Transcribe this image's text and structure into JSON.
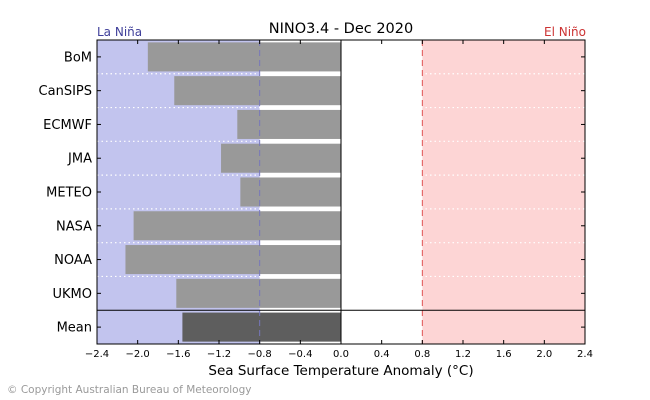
{
  "chart_data": {
    "type": "bar",
    "orientation": "horizontal",
    "title": "NINO3.4 - Dec 2020",
    "xlabel": "Sea Surface Temperature Anomaly (°C)",
    "ylabel": "",
    "xlim": [
      -2.4,
      2.4
    ],
    "xticks": [
      "−2.4",
      "−2.0",
      "−1.6",
      "−1.2",
      "−0.8",
      "−0.4",
      "0.0",
      "0.4",
      "0.8",
      "1.2",
      "1.6",
      "2.0",
      "2.4"
    ],
    "xtick_values": [
      -2.4,
      -2.0,
      -1.6,
      -1.2,
      -0.8,
      -0.4,
      0.0,
      0.4,
      0.8,
      1.2,
      1.6,
      2.0,
      2.4
    ],
    "categories": [
      "BoM",
      "CanSIPS",
      "ECMWF",
      "JMA",
      "METEO",
      "NASA",
      "NOAA",
      "UKMO"
    ],
    "values": [
      -1.9,
      -1.64,
      -1.02,
      -1.18,
      -0.99,
      -2.04,
      -2.12,
      -1.62
    ],
    "mean_label": "Mean",
    "mean_value": -1.56,
    "la_nina_label": "La Niña",
    "el_nino_label": "El Niño",
    "la_nina_threshold": -0.8,
    "el_nino_threshold": 0.8,
    "grid": false,
    "colors": {
      "model_bar": "#999999",
      "mean_bar": "#5e5e5e",
      "la_nina_fill": "#c2c4ee",
      "el_nino_fill": "#fdd5d5",
      "la_nina_text": "#3f3f9a",
      "el_nino_text": "#cc3333",
      "la_nina_line": "#7777bb",
      "el_nino_line": "#e05555"
    }
  },
  "footer": {
    "credit": "© Copyright Australian Bureau of Meteorology"
  }
}
